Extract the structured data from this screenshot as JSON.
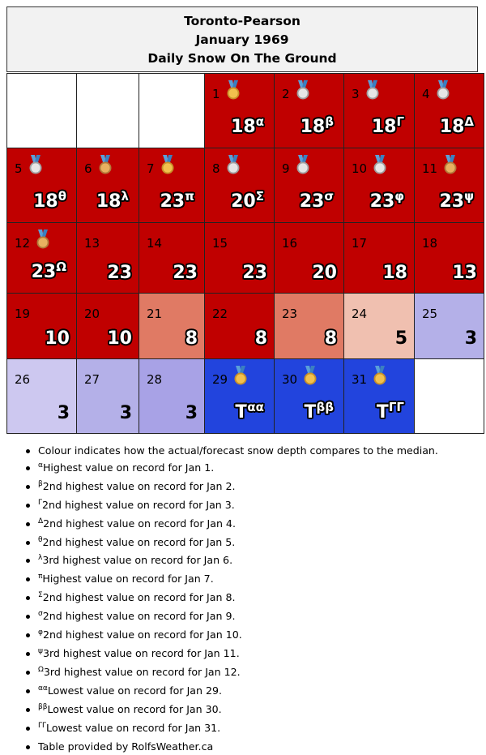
{
  "header": {
    "station": "Toronto-Pearson",
    "month": "January 1969",
    "subject": "Daily Snow On The Ground"
  },
  "colors": {
    "record_red": "#c00000",
    "above_salmon": "#e07a64",
    "slightly_above_pink": "#f0c0b0",
    "below_lavender": "#b4b0e8",
    "below_light_lavender": "#cdc8f0",
    "trace_blue": "#2244dd"
  },
  "calendar": {
    "weeks": [
      [
        {
          "blank": true
        },
        {
          "blank": true
        },
        {
          "blank": true
        },
        {
          "day": "1",
          "value": "18",
          "mark": "α",
          "medal": "gold",
          "color": "#c00000"
        },
        {
          "day": "2",
          "value": "18",
          "mark": "β",
          "medal": "silver",
          "color": "#c00000"
        },
        {
          "day": "3",
          "value": "18",
          "mark": "Γ",
          "medal": "silver",
          "color": "#c00000"
        },
        {
          "day": "4",
          "value": "18",
          "mark": "Δ",
          "medal": "silver",
          "color": "#c00000"
        }
      ],
      [
        {
          "day": "5",
          "value": "18",
          "mark": "θ",
          "medal": "silver",
          "color": "#c00000"
        },
        {
          "day": "6",
          "value": "18",
          "mark": "λ",
          "medal": "bronze",
          "color": "#c00000"
        },
        {
          "day": "7",
          "value": "23",
          "mark": "π",
          "medal": "gold",
          "color": "#c00000"
        },
        {
          "day": "8",
          "value": "20",
          "mark": "Σ",
          "medal": "silver",
          "color": "#c00000"
        },
        {
          "day": "9",
          "value": "23",
          "mark": "σ",
          "medal": "silver",
          "color": "#c00000"
        },
        {
          "day": "10",
          "value": "23",
          "mark": "φ",
          "medal": "silver",
          "color": "#c00000"
        },
        {
          "day": "11",
          "value": "23",
          "mark": "ψ",
          "medal": "bronze",
          "color": "#c00000"
        }
      ],
      [
        {
          "day": "12",
          "value": "23",
          "mark": "Ω",
          "medal": "bronze",
          "color": "#c00000"
        },
        {
          "day": "13",
          "value": "23",
          "mark": "",
          "medal": "",
          "color": "#c00000"
        },
        {
          "day": "14",
          "value": "23",
          "mark": "",
          "medal": "",
          "color": "#c00000"
        },
        {
          "day": "15",
          "value": "23",
          "mark": "",
          "medal": "",
          "color": "#c00000"
        },
        {
          "day": "16",
          "value": "20",
          "mark": "",
          "medal": "",
          "color": "#c00000"
        },
        {
          "day": "17",
          "value": "18",
          "mark": "",
          "medal": "",
          "color": "#c00000"
        },
        {
          "day": "18",
          "value": "13",
          "mark": "",
          "medal": "",
          "color": "#c00000"
        }
      ],
      [
        {
          "day": "19",
          "value": "10",
          "mark": "",
          "medal": "",
          "color": "#c00000"
        },
        {
          "day": "20",
          "value": "10",
          "mark": "",
          "medal": "",
          "color": "#c00000"
        },
        {
          "day": "21",
          "value": "8",
          "mark": "",
          "medal": "",
          "color": "#e07a64"
        },
        {
          "day": "22",
          "value": "8",
          "mark": "",
          "medal": "",
          "color": "#c00000"
        },
        {
          "day": "23",
          "value": "8",
          "mark": "",
          "medal": "",
          "color": "#e07a64"
        },
        {
          "day": "24",
          "value": "5",
          "mark": "",
          "medal": "",
          "color": "#f0c0b0",
          "dark": true
        },
        {
          "day": "25",
          "value": "3",
          "mark": "",
          "medal": "",
          "color": "#b4b0e8",
          "dark": true
        }
      ],
      [
        {
          "day": "26",
          "value": "3",
          "mark": "",
          "medal": "",
          "color": "#cdc8f0",
          "dark": true
        },
        {
          "day": "27",
          "value": "3",
          "mark": "",
          "medal": "",
          "color": "#b4b0e8",
          "dark": true
        },
        {
          "day": "28",
          "value": "3",
          "mark": "",
          "medal": "",
          "color": "#a8a2e6",
          "dark": true
        },
        {
          "day": "29",
          "value": "T",
          "mark": "αα",
          "medal": "gold",
          "color": "#2244dd"
        },
        {
          "day": "30",
          "value": "T",
          "mark": "ββ",
          "medal": "gold",
          "color": "#2244dd"
        },
        {
          "day": "31",
          "value": "T",
          "mark": "ΓΓ",
          "medal": "gold",
          "color": "#2244dd"
        },
        {
          "blank": true
        }
      ]
    ]
  },
  "notes": [
    {
      "mark": "",
      "text": "Colour indicates how the actual/forecast snow depth compares to the median."
    },
    {
      "mark": "α",
      "text": "Highest value on record for Jan 1."
    },
    {
      "mark": "β",
      "text": "2nd highest value on record for Jan 2."
    },
    {
      "mark": "Γ",
      "text": "2nd highest value on record for Jan 3."
    },
    {
      "mark": "Δ",
      "text": "2nd highest value on record for Jan 4."
    },
    {
      "mark": "θ",
      "text": "2nd highest value on record for Jan 5."
    },
    {
      "mark": "λ",
      "text": "3rd highest value on record for Jan 6."
    },
    {
      "mark": "π",
      "text": "Highest value on record for Jan 7."
    },
    {
      "mark": "Σ",
      "text": "2nd highest value on record for Jan 8."
    },
    {
      "mark": "σ",
      "text": "2nd highest value on record for Jan 9."
    },
    {
      "mark": "φ",
      "text": "2nd highest value on record for Jan 10."
    },
    {
      "mark": "ψ",
      "text": "3rd highest value on record for Jan 11."
    },
    {
      "mark": "Ω",
      "text": "3rd highest value on record for Jan 12."
    },
    {
      "mark": "αα",
      "text": "Lowest value on record for Jan 29."
    },
    {
      "mark": "ββ",
      "text": "Lowest value on record for Jan 30."
    },
    {
      "mark": "ΓΓ",
      "text": "Lowest value on record for Jan 31."
    },
    {
      "mark": "",
      "text": "Table provided by RolfsWeather.ca"
    }
  ]
}
